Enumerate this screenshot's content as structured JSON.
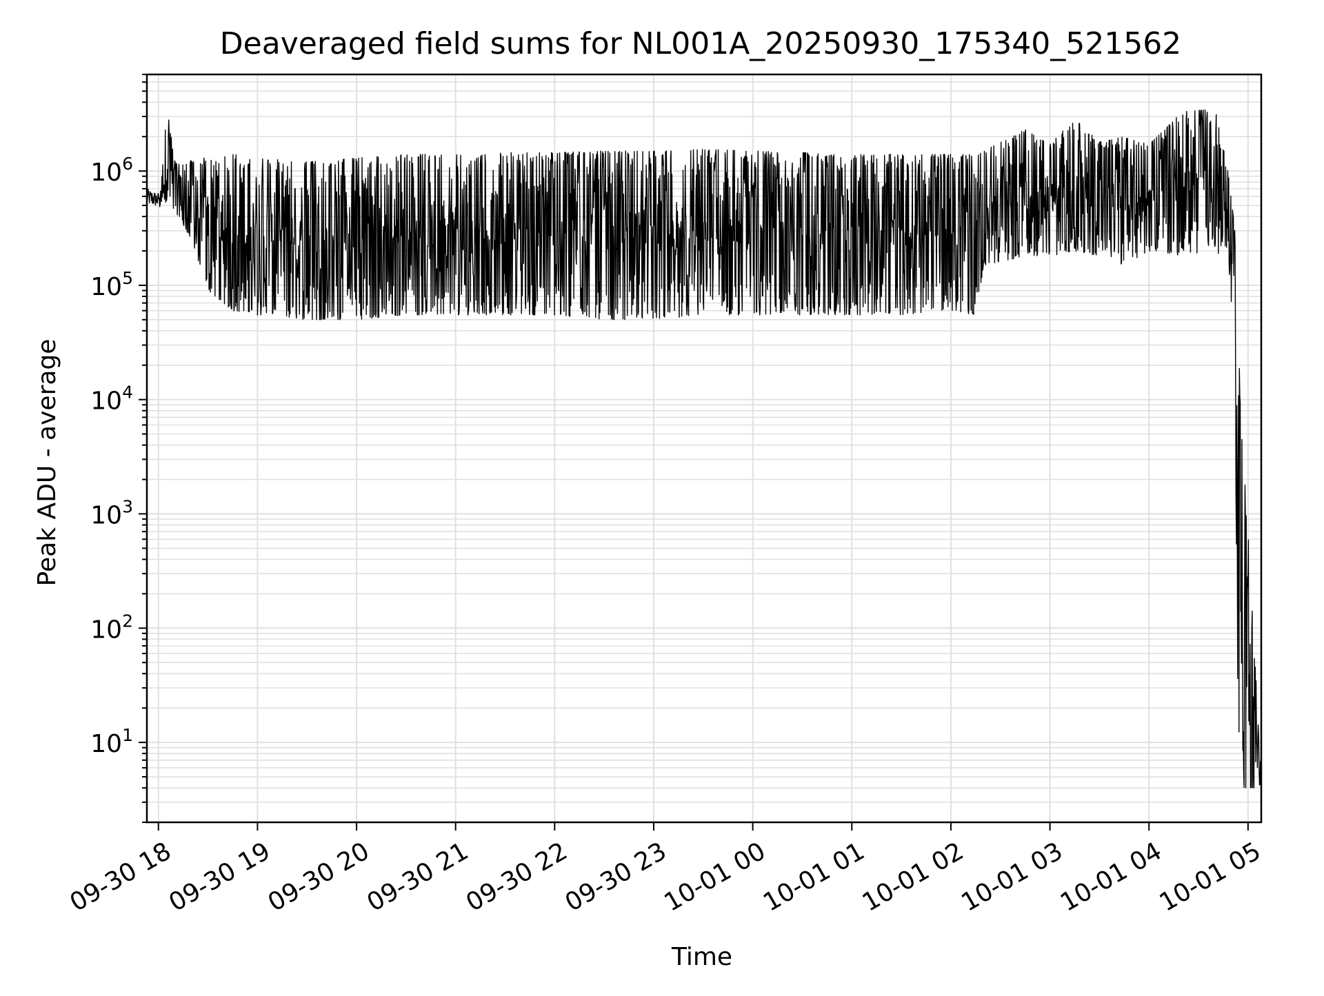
{
  "chart_data": {
    "type": "line",
    "title": "Deaveraged field sums for NL001A_20250930_175340_521562",
    "xlabel": "Time",
    "ylabel": "Peak ADU - average",
    "yscale": "log",
    "ylim": [
      2,
      7000000
    ],
    "xlim": [
      "09-30 17:53",
      "10-01 05:08"
    ],
    "grid": true,
    "legend": "none",
    "line_color": "#000000",
    "grid_color": "#e0e0e0",
    "x_ticks": [
      {
        "value": "09-30 18:00",
        "label": "09-30 18"
      },
      {
        "value": "09-30 19:00",
        "label": "09-30 19"
      },
      {
        "value": "09-30 20:00",
        "label": "09-30 20"
      },
      {
        "value": "09-30 21:00",
        "label": "09-30 21"
      },
      {
        "value": "09-30 22:00",
        "label": "09-30 22"
      },
      {
        "value": "09-30 23:00",
        "label": "09-30 23"
      },
      {
        "value": "10-01 00:00",
        "label": "10-01 00"
      },
      {
        "value": "10-01 01:00",
        "label": "10-01 01"
      },
      {
        "value": "10-01 02:00",
        "label": "10-01 02"
      },
      {
        "value": "10-01 03:00",
        "label": "10-01 03"
      },
      {
        "value": "10-01 04:00",
        "label": "10-01 04"
      },
      {
        "value": "10-01 05:00",
        "label": "10-01 05"
      }
    ],
    "y_ticks": [
      {
        "value": 10,
        "base": "10",
        "exp": "1"
      },
      {
        "value": 100,
        "base": "10",
        "exp": "2"
      },
      {
        "value": 1000,
        "base": "10",
        "exp": "3"
      },
      {
        "value": 10000,
        "base": "10",
        "exp": "4"
      },
      {
        "value": 100000,
        "base": "10",
        "exp": "5"
      },
      {
        "value": 1000000,
        "base": "10",
        "exp": "6"
      }
    ],
    "series": [
      {
        "envelope_note": "dense signal; per-time low/high envelope of the trace",
        "points": [
          {
            "t": "09-30 17:53",
            "low": 500000,
            "high": 700000
          },
          {
            "t": "09-30 18:00",
            "low": 480000,
            "high": 650000
          },
          {
            "t": "09-30 18:05",
            "low": 500000,
            "high": 3700000
          },
          {
            "t": "09-30 18:10",
            "low": 450000,
            "high": 1200000
          },
          {
            "t": "09-30 18:20",
            "low": 250000,
            "high": 1300000
          },
          {
            "t": "09-30 18:30",
            "low": 90000,
            "high": 1300000
          },
          {
            "t": "09-30 18:45",
            "low": 60000,
            "high": 1400000
          },
          {
            "t": "09-30 19:00",
            "low": 55000,
            "high": 1300000
          },
          {
            "t": "09-30 19:30",
            "low": 50000,
            "high": 1200000
          },
          {
            "t": "09-30 20:00",
            "low": 50000,
            "high": 1300000
          },
          {
            "t": "09-30 20:30",
            "low": 55000,
            "high": 1400000
          },
          {
            "t": "09-30 21:00",
            "low": 55000,
            "high": 1400000
          },
          {
            "t": "09-30 21:30",
            "low": 55000,
            "high": 1450000
          },
          {
            "t": "09-30 22:00",
            "low": 55000,
            "high": 1450000
          },
          {
            "t": "09-30 22:30",
            "low": 50000,
            "high": 1500000
          },
          {
            "t": "09-30 23:00",
            "low": 50000,
            "high": 1500000
          },
          {
            "t": "09-30 23:30",
            "low": 55000,
            "high": 1550000
          },
          {
            "t": "10-01 00:00",
            "low": 55000,
            "high": 1500000
          },
          {
            "t": "10-01 00:30",
            "low": 55000,
            "high": 1450000
          },
          {
            "t": "10-01 01:00",
            "low": 55000,
            "high": 1400000
          },
          {
            "t": "10-01 01:30",
            "low": 55000,
            "high": 1400000
          },
          {
            "t": "10-01 02:00",
            "low": 60000,
            "high": 1400000
          },
          {
            "t": "10-01 02:15",
            "low": 55000,
            "high": 1400000
          },
          {
            "t": "10-01 02:20",
            "low": 150000,
            "high": 1500000
          },
          {
            "t": "10-01 02:45",
            "low": 180000,
            "high": 2300000
          },
          {
            "t": "10-01 03:00",
            "low": 180000,
            "high": 1700000
          },
          {
            "t": "10-01 03:15",
            "low": 200000,
            "high": 2900000
          },
          {
            "t": "10-01 03:30",
            "low": 180000,
            "high": 1800000
          },
          {
            "t": "10-01 03:45",
            "low": 150000,
            "high": 2000000
          },
          {
            "t": "10-01 04:00",
            "low": 200000,
            "high": 1700000
          },
          {
            "t": "10-01 04:20",
            "low": 180000,
            "high": 3300000
          },
          {
            "t": "10-01 04:40",
            "low": 200000,
            "high": 3500000
          },
          {
            "t": "10-01 04:48",
            "low": 150000,
            "high": 1000000
          },
          {
            "t": "10-01 04:52",
            "low": 30000,
            "high": 300000
          },
          {
            "t": "10-01 04:54",
            "low": 4,
            "high": 30000
          },
          {
            "t": "10-01 05:08",
            "low": 4,
            "high": 5
          }
        ]
      }
    ]
  }
}
